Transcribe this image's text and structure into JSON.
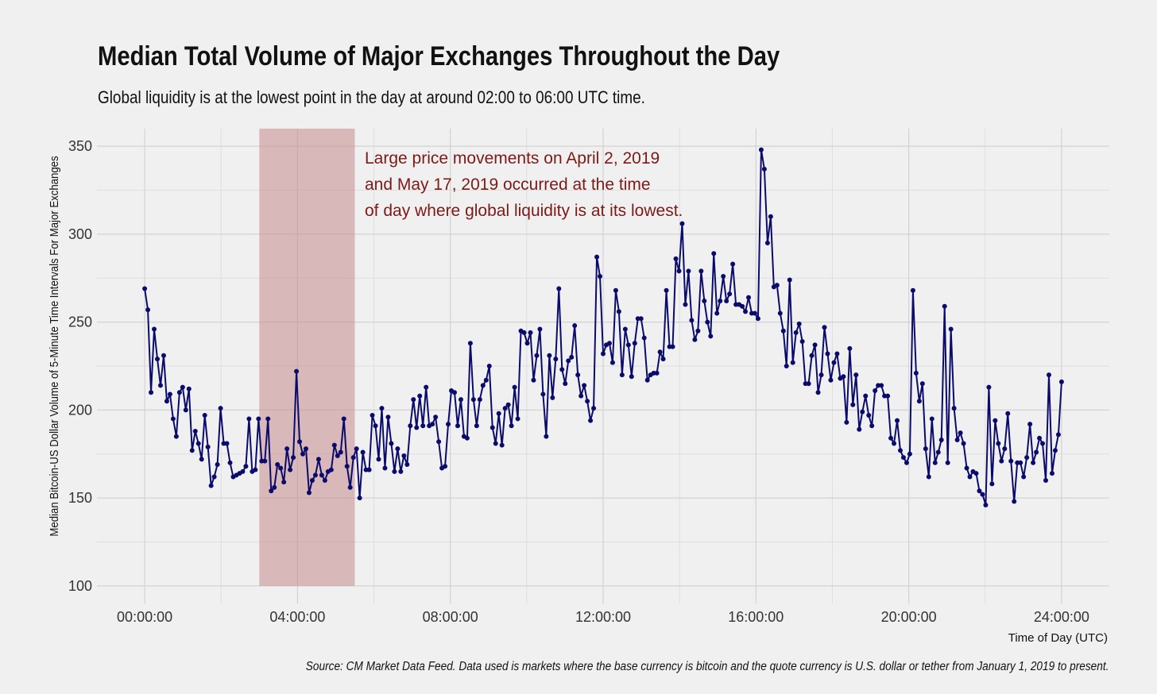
{
  "chart_data": {
    "type": "line",
    "title": "Median Total Volume of Major Exchanges Throughout the Day",
    "subtitle": "Global liquidity is at the lowest point in the day at around 02:00 to 06:00 UTC time.",
    "caption": "Source: CM Market Data Feed. Data used is markets where the base currency is bitcoin and the quote currency is U.S. dollar or tether from January 1, 2019 to present.",
    "xlabel": "Time of Day (UTC)",
    "ylabel": "Median Bitcoin-US Dollar Volume of 5-Minute Time Intervals For Major Exchanges",
    "x_unit": "hours",
    "xlim": [
      -1.25,
      25.25
    ],
    "ylim": [
      90,
      360
    ],
    "x_ticks": [
      {
        "value": 0,
        "label": "00:00:00"
      },
      {
        "value": 4,
        "label": "04:00:00"
      },
      {
        "value": 8,
        "label": "08:00:00"
      },
      {
        "value": 12,
        "label": "12:00:00"
      },
      {
        "value": 16,
        "label": "16:00:00"
      },
      {
        "value": 20,
        "label": "20:00:00"
      },
      {
        "value": 24,
        "label": "24:00:00"
      }
    ],
    "y_ticks": [
      100,
      150,
      200,
      250,
      300,
      350
    ],
    "grid": true,
    "highlight": {
      "x_start": 3.0,
      "x_end": 5.5,
      "y_start": 100,
      "y_end": 360,
      "color": "#c48b8b"
    },
    "annotation": {
      "lines": [
        "Large price movements on April 2, 2019",
        "and May 17, 2019 occurred at the time",
        "of day where global liquidity is at its lowest."
      ],
      "color": "#7b1a17"
    },
    "series": [
      {
        "color": "#0b0b6b",
        "values": [
          269,
          257,
          210,
          246,
          229,
          214,
          231,
          205,
          209,
          195,
          185,
          210,
          213,
          200,
          212,
          177,
          188,
          181,
          172,
          197,
          179,
          157,
          162,
          169,
          201,
          181,
          181,
          170,
          162,
          163,
          164,
          165,
          168,
          195,
          165,
          166,
          195,
          171,
          171,
          195,
          154,
          156,
          169,
          167,
          159,
          178,
          166,
          173,
          222,
          182,
          175,
          178,
          153,
          160,
          163,
          172,
          163,
          160,
          165,
          166,
          180,
          174,
          176,
          195,
          168,
          156,
          173,
          178,
          150,
          176,
          166,
          166,
          197,
          191,
          172,
          201,
          167,
          196,
          181,
          165,
          178,
          165,
          174,
          169,
          191,
          206,
          190,
          208,
          191,
          213,
          191,
          192,
          196,
          182,
          167,
          168,
          192,
          211,
          210,
          191,
          206,
          185,
          184,
          238,
          206,
          191,
          206,
          214,
          217,
          225,
          190,
          181,
          198,
          180,
          201,
          203,
          191,
          213,
          195,
          245,
          244,
          238,
          244,
          217,
          231,
          246,
          209,
          185,
          231,
          207,
          229,
          269,
          223,
          215,
          228,
          230,
          248,
          220,
          208,
          214,
          205,
          194,
          201,
          287,
          276,
          232,
          237,
          238,
          227,
          268,
          256,
          220,
          246,
          237,
          219,
          238,
          252,
          252,
          241,
          217,
          220,
          221,
          221,
          233,
          229,
          268,
          236,
          236,
          286,
          279,
          306,
          260,
          279,
          251,
          240,
          245,
          279,
          262,
          250,
          242,
          289,
          255,
          262,
          276,
          262,
          266,
          283,
          260,
          260,
          259,
          256,
          264,
          255,
          255,
          252,
          348,
          337,
          295,
          310,
          270,
          271,
          255,
          245,
          225,
          274,
          227,
          244,
          249,
          239,
          215,
          215,
          231,
          237,
          210,
          220,
          247,
          232,
          217,
          227,
          232,
          218,
          219,
          193,
          235,
          203,
          220,
          189,
          199,
          208,
          197,
          191,
          211,
          214,
          214,
          208,
          208,
          184,
          181,
          194,
          177,
          173,
          170,
          175,
          268,
          221,
          205,
          215,
          178,
          162,
          195,
          170,
          176,
          183,
          259,
          170,
          246,
          201,
          183,
          187,
          181,
          167,
          162,
          165,
          164,
          154,
          152,
          146,
          213,
          158,
          194,
          181,
          171,
          178,
          198,
          171,
          148,
          170,
          170,
          162,
          173,
          192,
          170,
          176,
          184,
          181,
          160,
          220,
          164,
          177,
          186,
          216
        ]
      }
    ]
  }
}
